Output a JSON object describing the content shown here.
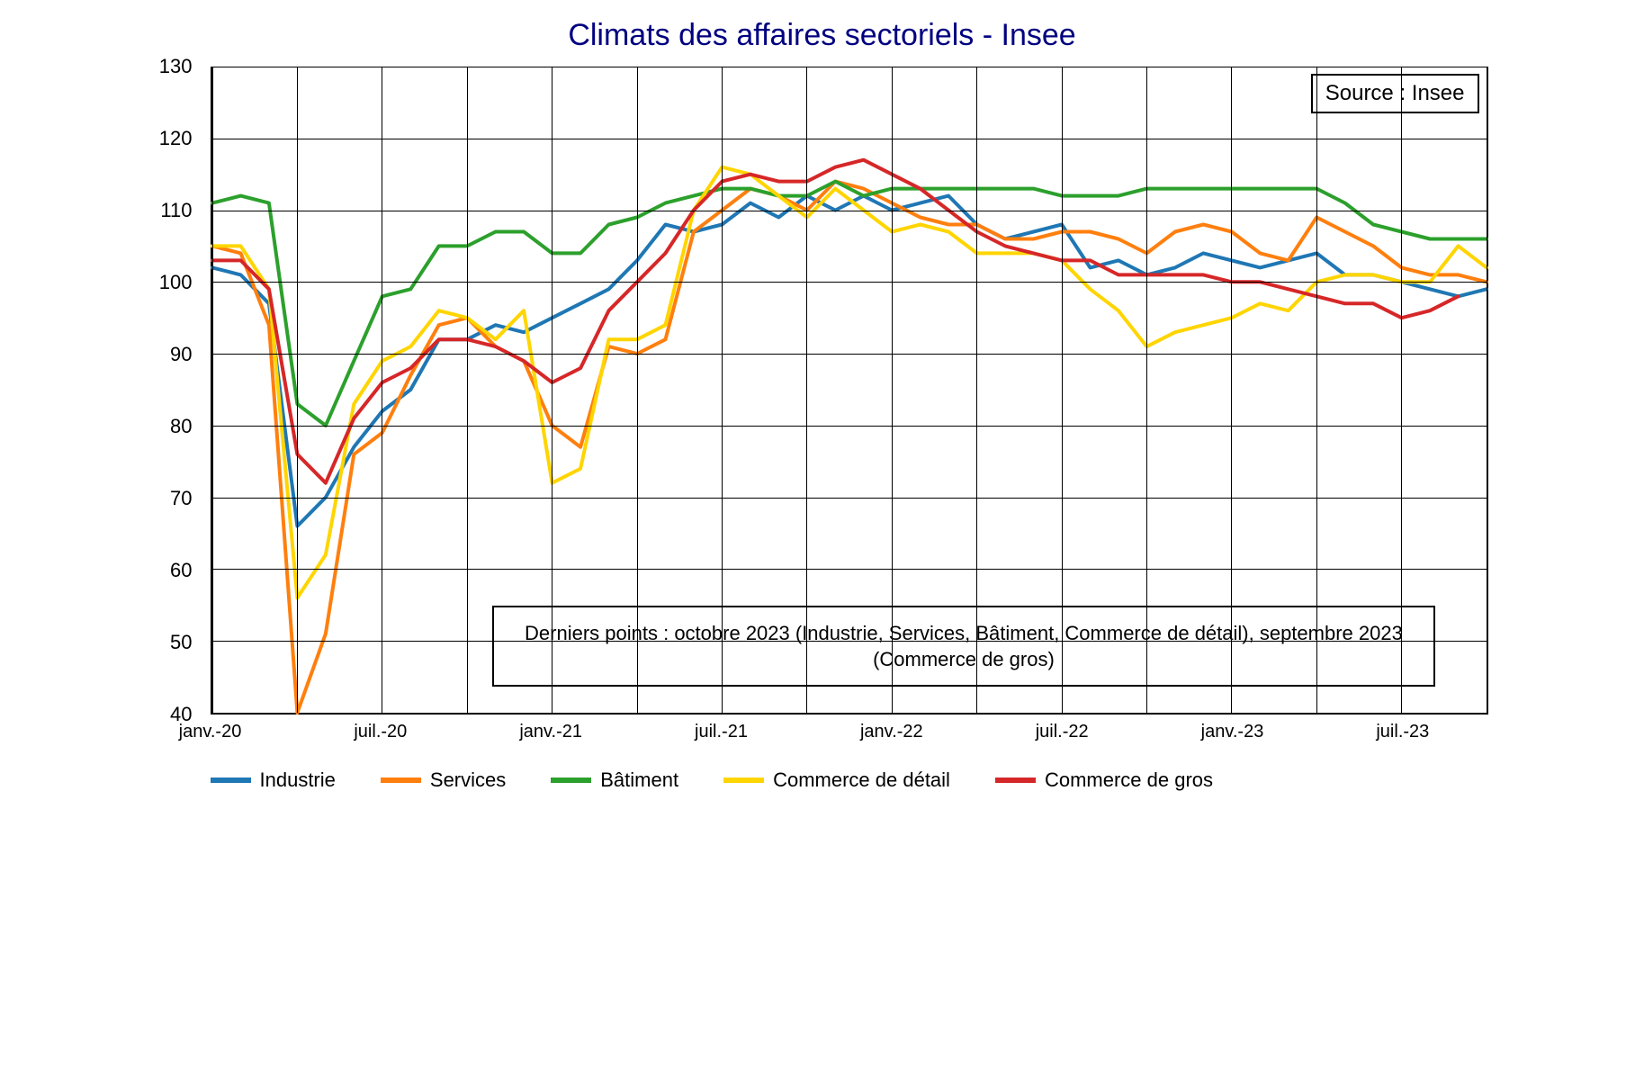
{
  "chart": {
    "type": "line",
    "title": "Climats des affaires sectoriels - Insee",
    "title_color": "#000080",
    "title_fontsize": 34,
    "background_color": "#ffffff",
    "grid_color": "#000000",
    "y_axis": {
      "min": 40,
      "max": 130,
      "tick_step": 10,
      "ticks": [
        40,
        50,
        60,
        70,
        80,
        90,
        100,
        110,
        120,
        130
      ],
      "label_fontsize": 22
    },
    "x_axis": {
      "labels": [
        "janv.-20",
        "juil.-20",
        "janv.-21",
        "juil.-21",
        "janv.-22",
        "juil.-22",
        "janv.-23",
        "juil.-23"
      ],
      "n_points": 46,
      "year_ticks_at": [
        0,
        6,
        12,
        18,
        24,
        30,
        36,
        42
      ],
      "minor_grid_every": 3,
      "label_fontsize": 20
    },
    "line_width": 4,
    "source_box": "Source : Insee",
    "annotation_box": "Derniers points : octobre 2023 (Industrie, Services, Bâtiment, Commerce de détail), septembre 2023 (Commerce de gros)",
    "series": [
      {
        "name": "Industrie",
        "color": "#1f77b4",
        "values": [
          102,
          101,
          97,
          66,
          70,
          77,
          82,
          85,
          92,
          92,
          94,
          93,
          95,
          97,
          99,
          103,
          108,
          107,
          108,
          111,
          109,
          112,
          110,
          112,
          110,
          111,
          112,
          108,
          106,
          107,
          108,
          102,
          103,
          101,
          102,
          104,
          103,
          102,
          103,
          104,
          101,
          101,
          100,
          99,
          98,
          99
        ]
      },
      {
        "name": "Services",
        "color": "#ff7f0e",
        "values": [
          105,
          104,
          94,
          40,
          51,
          76,
          79,
          87,
          94,
          95,
          91,
          89,
          80,
          77,
          91,
          90,
          92,
          107,
          110,
          113,
          112,
          110,
          114,
          113,
          111,
          109,
          108,
          108,
          106,
          106,
          107,
          107,
          106,
          104,
          107,
          108,
          107,
          104,
          103,
          109,
          107,
          105,
          102,
          101,
          101,
          100
        ]
      },
      {
        "name": "Bâtiment",
        "color": "#2ca02c",
        "values": [
          111,
          112,
          111,
          83,
          80,
          89,
          98,
          99,
          105,
          105,
          107,
          107,
          104,
          104,
          108,
          109,
          111,
          112,
          113,
          113,
          112,
          112,
          114,
          112,
          113,
          113,
          113,
          113,
          113,
          113,
          112,
          112,
          112,
          113,
          113,
          113,
          113,
          113,
          113,
          113,
          111,
          108,
          107,
          106,
          106,
          106
        ]
      },
      {
        "name": "Commerce de détail",
        "color": "#ffd500",
        "values": [
          105,
          105,
          99,
          56,
          62,
          83,
          89,
          91,
          96,
          95,
          92,
          96,
          72,
          74,
          92,
          92,
          94,
          110,
          116,
          115,
          112,
          109,
          113,
          110,
          107,
          108,
          107,
          104,
          104,
          104,
          103,
          99,
          96,
          91,
          93,
          94,
          95,
          97,
          96,
          100,
          101,
          101,
          100,
          100,
          105,
          102
        ]
      },
      {
        "name": "Commerce de gros",
        "color": "#d62728",
        "values": [
          103,
          103,
          99,
          76,
          72,
          81,
          86,
          88,
          92,
          92,
          91,
          89,
          86,
          88,
          96,
          100,
          104,
          110,
          114,
          115,
          114,
          114,
          116,
          117,
          115,
          113,
          110,
          107,
          105,
          104,
          103,
          103,
          101,
          101,
          101,
          101,
          100,
          100,
          99,
          98,
          97,
          97,
          95,
          96,
          98
        ]
      }
    ],
    "legend_labels": [
      "Industrie",
      "Services",
      "Bâtiment",
      "Commerce de détail",
      "Commerce de gros"
    ]
  }
}
